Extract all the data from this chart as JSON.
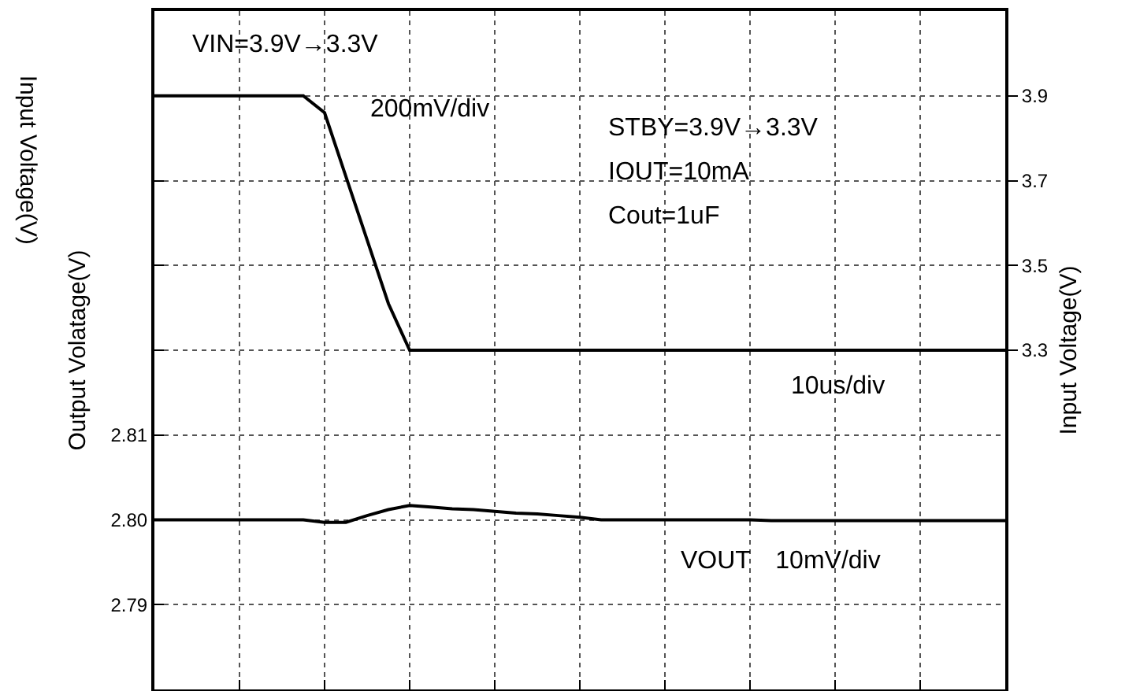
{
  "chart_data": {
    "type": "line",
    "ylabel": "Output Volatage(V)",
    "y2label": "Input Voltage(V)",
    "annotations": [
      "Input Voltage(V)",
      "VIN=3.9V→3.3V",
      "200mV/div",
      "STBY=3.9V→3.3V",
      "IOUT=10mA",
      "Cout=1uF",
      "10us/div",
      "VOUT　10mV/div"
    ],
    "categories": [
      null,
      null,
      null,
      null,
      null,
      null,
      null,
      null,
      null,
      null,
      null,
      null,
      null,
      null,
      null,
      null,
      null,
      null,
      null,
      null,
      null,
      null,
      null,
      null,
      null,
      null,
      null,
      null,
      null,
      null,
      null,
      null,
      null,
      null,
      null,
      null,
      null,
      null,
      null,
      null,
      null
    ],
    "series": [
      {
        "color": "#000000",
        "axis": "y2",
        "values": [
          3.9,
          3.9,
          3.9,
          3.9,
          3.9,
          3.9,
          3.9,
          3.9,
          3.86,
          3.71,
          3.56,
          3.41,
          3.3,
          3.3,
          3.3,
          3.3,
          3.3,
          3.3,
          3.3,
          3.3,
          3.3,
          3.3,
          3.3,
          3.3,
          3.3,
          3.3,
          3.3,
          3.3,
          3.3,
          3.3,
          3.3,
          3.3,
          3.3,
          3.3,
          3.3,
          3.3,
          3.3,
          3.3,
          3.3,
          3.3,
          3.3
        ]
      },
      {
        "color": "#000000",
        "values": [
          2.8,
          2.8,
          2.8,
          2.8,
          2.8,
          2.8,
          2.8,
          2.8,
          2.7997,
          2.7997,
          2.8005,
          2.8012,
          2.8017,
          2.8015,
          2.8013,
          2.8012,
          2.801,
          2.8008,
          2.8007,
          2.8005,
          2.8003,
          2.8,
          2.8,
          2.8,
          2.8,
          2.8,
          2.8,
          2.8,
          2.8,
          2.7999,
          2.7999,
          2.7999,
          2.7999,
          2.7999,
          2.7999,
          2.7999,
          2.7999,
          2.7999,
          2.7999,
          2.7999,
          2.7999
        ]
      }
    ],
    "ylim": [
      2.78,
      2.86
    ],
    "yticks": [
      {
        "value": 2.78,
        "label": null
      },
      2.79,
      {
        "value": 2.8,
        "label": "2.80"
      },
      2.81,
      {
        "value": 2.82,
        "label": null
      },
      {
        "value": 2.83,
        "label": null
      },
      {
        "value": 2.84,
        "label": null
      },
      {
        "value": 2.85,
        "label": null
      },
      {
        "value": 2.86,
        "label": null
      }
    ],
    "y2lim": [
      2.5,
      4.1
    ],
    "y2ticks": [
      3.3,
      3.5,
      3.7,
      3.9
    ],
    "tick_labels": "y",
    "grid": true,
    "line_style": "solid",
    "marker": "none"
  }
}
